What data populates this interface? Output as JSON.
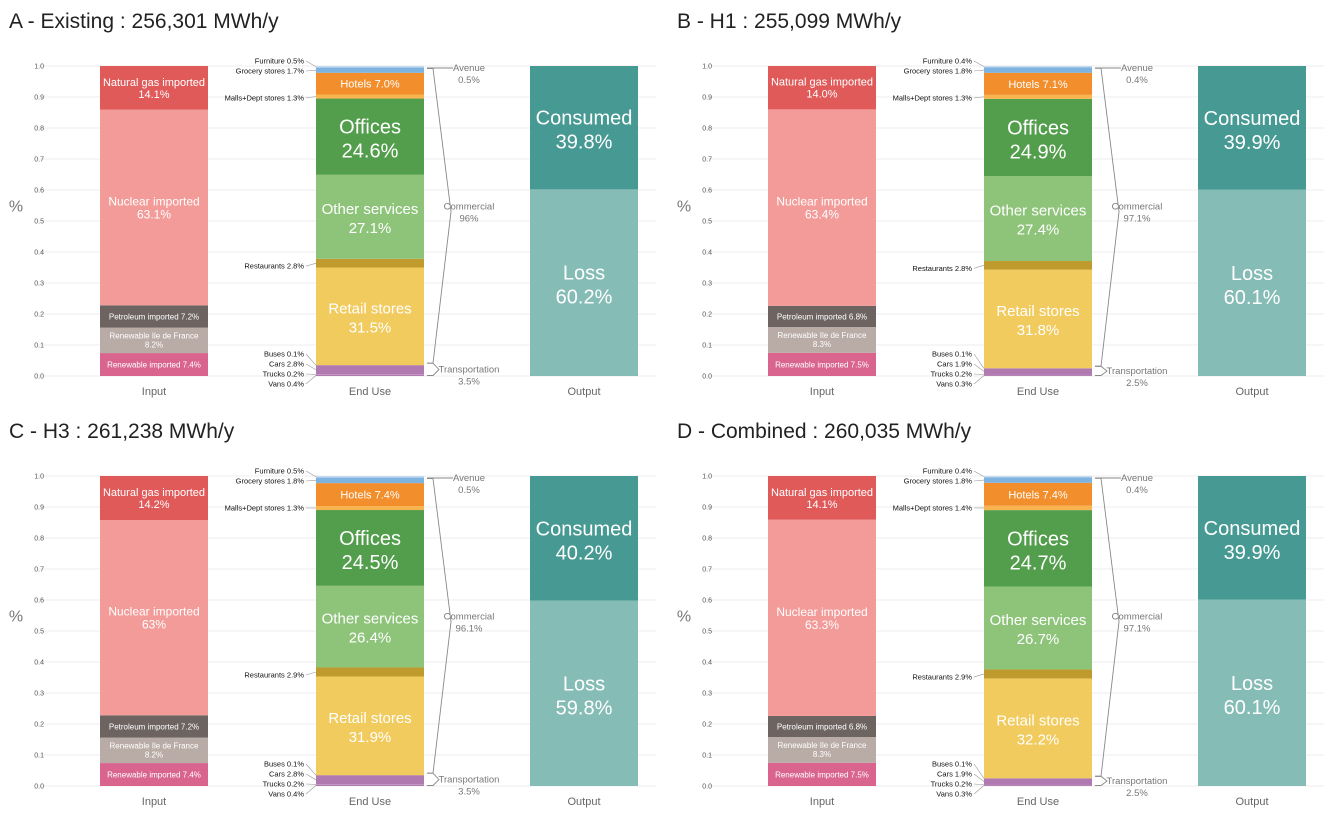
{
  "colors": {
    "natural_gas": "#e05a5a",
    "nuclear": "#f29b98",
    "petroleum": "#6d6462",
    "renewable_idf": "#b9aca6",
    "renewable_imported": "#d9658f",
    "vans": "#b07ab0",
    "trucks": "#b07ab0",
    "cars": "#b07ab0",
    "buses": "#b07ab0",
    "retail": "#f1cb5e",
    "restaurants": "#bf9a2c",
    "other_services": "#8ec47a",
    "offices": "#539e4c",
    "malls": "#f8b44f",
    "hotels": "#f28e2b",
    "grocery": "#7fb3df",
    "furniture": "#c3daf0",
    "loss": "#86bcb6",
    "consumed": "#479a93"
  },
  "chart_data": [
    {
      "type": "bar",
      "title": "A - Existing : 256,301 MWh/y",
      "ylabel": "%",
      "ylim": [
        0,
        1
      ],
      "yticks": [
        "0.0",
        "0.1",
        "0.2",
        "0.3",
        "0.4",
        "0.5",
        "0.6",
        "0.7",
        "0.8",
        "0.9",
        "1.0"
      ],
      "categories": [
        "Input",
        "End Use",
        "Output"
      ],
      "input": [
        {
          "key": "renewable_imported",
          "value": 7.4,
          "label": "Renewable imported 7.4%"
        },
        {
          "key": "renewable_idf",
          "value": 8.2,
          "label": "Renewable Ile de France",
          "label2": "8.2%"
        },
        {
          "key": "petroleum",
          "value": 7.2,
          "label": "Petroleum imported 7.2%"
        },
        {
          "key": "nuclear",
          "value": 63.1,
          "label": "Nuclear imported",
          "label2": "63.1%"
        },
        {
          "key": "natural_gas",
          "value": 14.1,
          "label": "Natural gas imported",
          "label2": "14.1%"
        }
      ],
      "end_use": [
        {
          "key": "vans",
          "value": 0.4,
          "side_label": "Vans 0.4%"
        },
        {
          "key": "trucks",
          "value": 0.2,
          "side_label": "Trucks 0.2%"
        },
        {
          "key": "cars",
          "value": 2.8,
          "side_label": "Cars 2.8%"
        },
        {
          "key": "buses",
          "value": 0.1,
          "side_label": "Buses 0.1%"
        },
        {
          "key": "retail",
          "value": 31.5,
          "label": "Retail stores",
          "label2": "31.5%"
        },
        {
          "key": "restaurants",
          "value": 2.8,
          "side_label": "Restaurants 2.8%"
        },
        {
          "key": "other_services",
          "value": 27.1,
          "label": "Other services",
          "label2": "27.1%"
        },
        {
          "key": "offices",
          "value": 24.6,
          "label": "Offices",
          "label2": "24.6%"
        },
        {
          "key": "malls",
          "value": 1.3,
          "side_label": "Malls+Dept stores 1.3%"
        },
        {
          "key": "hotels",
          "value": 7.0,
          "label": "Hotels 7.0%"
        },
        {
          "key": "grocery",
          "value": 1.7,
          "side_label": "Grocery stores 1.7%"
        },
        {
          "key": "furniture",
          "value": 0.5,
          "side_label": "Furniture 0.5%"
        }
      ],
      "groups": [
        {
          "label": "Transportation",
          "value_label": "3.5%"
        },
        {
          "label": "Commercial",
          "value_label": "96%"
        },
        {
          "label": "Avenue",
          "value_label": "0.5%"
        }
      ],
      "output": [
        {
          "key": "loss",
          "value": 60.2,
          "label": "Loss",
          "label2": "60.2%"
        },
        {
          "key": "consumed",
          "value": 39.8,
          "label": "Consumed",
          "label2": "39.8%"
        }
      ]
    },
    {
      "type": "bar",
      "title": "B - H1 : 255,099 MWh/y",
      "ylabel": "%",
      "ylim": [
        0,
        1
      ],
      "yticks": [
        "0.0",
        "0.1",
        "0.2",
        "0.3",
        "0.4",
        "0.5",
        "0.6",
        "0.7",
        "0.8",
        "0.9",
        "1.0"
      ],
      "categories": [
        "Input",
        "End Use",
        "Output"
      ],
      "input": [
        {
          "key": "renewable_imported",
          "value": 7.5,
          "label": "Renewable imported 7.5%"
        },
        {
          "key": "renewable_idf",
          "value": 8.3,
          "label": "Renewable Ile de France",
          "label2": "8.3%"
        },
        {
          "key": "petroleum",
          "value": 6.8,
          "label": "Petroleum imported 6.8%"
        },
        {
          "key": "nuclear",
          "value": 63.4,
          "label": "Nuclear imported",
          "label2": "63.4%"
        },
        {
          "key": "natural_gas",
          "value": 14.0,
          "label": "Natural gas imported",
          "label2": "14.0%"
        }
      ],
      "end_use": [
        {
          "key": "vans",
          "value": 0.3,
          "side_label": "Vans 0.3%"
        },
        {
          "key": "trucks",
          "value": 0.2,
          "side_label": "Trucks 0.2%"
        },
        {
          "key": "cars",
          "value": 1.9,
          "side_label": "Cars 1.9%"
        },
        {
          "key": "buses",
          "value": 0.1,
          "side_label": "Buses 0.1%"
        },
        {
          "key": "retail",
          "value": 31.8,
          "label": "Retail stores",
          "label2": "31.8%"
        },
        {
          "key": "restaurants",
          "value": 2.8,
          "side_label": "Restaurants 2.8%"
        },
        {
          "key": "other_services",
          "value": 27.4,
          "label": "Other services",
          "label2": "27.4%"
        },
        {
          "key": "offices",
          "value": 24.9,
          "label": "Offices",
          "label2": "24.9%"
        },
        {
          "key": "malls",
          "value": 1.3,
          "side_label": "Malls+Dept stores 1.3%"
        },
        {
          "key": "hotels",
          "value": 7.1,
          "label": "Hotels 7.1%"
        },
        {
          "key": "grocery",
          "value": 1.8,
          "side_label": "Grocery stores 1.8%"
        },
        {
          "key": "furniture",
          "value": 0.4,
          "side_label": "Furniture 0.4%"
        }
      ],
      "groups": [
        {
          "label": "Transportation",
          "value_label": "2.5%"
        },
        {
          "label": "Commercial",
          "value_label": "97.1%"
        },
        {
          "label": "Avenue",
          "value_label": "0.4%"
        }
      ],
      "output": [
        {
          "key": "loss",
          "value": 60.1,
          "label": "Loss",
          "label2": "60.1%"
        },
        {
          "key": "consumed",
          "value": 39.9,
          "label": "Consumed",
          "label2": "39.9%"
        }
      ]
    },
    {
      "type": "bar",
      "title": "C - H3 : 261,238 MWh/y",
      "ylabel": "%",
      "ylim": [
        0,
        1
      ],
      "yticks": [
        "0.0",
        "0.1",
        "0.2",
        "0.3",
        "0.4",
        "0.5",
        "0.6",
        "0.7",
        "0.8",
        "0.9",
        "1.0"
      ],
      "categories": [
        "Input",
        "End Use",
        "Output"
      ],
      "input": [
        {
          "key": "renewable_imported",
          "value": 7.4,
          "label": "Renewable imported 7.4%"
        },
        {
          "key": "renewable_idf",
          "value": 8.2,
          "label": "Renewable Ile de France",
          "label2": "8.2%"
        },
        {
          "key": "petroleum",
          "value": 7.2,
          "label": "Petroleum imported 7.2%"
        },
        {
          "key": "nuclear",
          "value": 63.0,
          "label": "Nuclear imported",
          "label2": "63%"
        },
        {
          "key": "natural_gas",
          "value": 14.2,
          "label": "Natural gas imported",
          "label2": "14.2%"
        }
      ],
      "end_use": [
        {
          "key": "vans",
          "value": 0.4,
          "side_label": "Vans 0.4%"
        },
        {
          "key": "trucks",
          "value": 0.2,
          "side_label": "Trucks 0.2%"
        },
        {
          "key": "cars",
          "value": 2.8,
          "side_label": "Cars 2.8%"
        },
        {
          "key": "buses",
          "value": 0.1,
          "side_label": "Buses 0.1%"
        },
        {
          "key": "retail",
          "value": 31.9,
          "label": "Retail stores",
          "label2": "31.9%"
        },
        {
          "key": "restaurants",
          "value": 2.9,
          "side_label": "Restaurants 2.9%"
        },
        {
          "key": "other_services",
          "value": 26.4,
          "label": "Other services",
          "label2": "26.4%"
        },
        {
          "key": "offices",
          "value": 24.5,
          "label": "Offices",
          "label2": "24.5%"
        },
        {
          "key": "malls",
          "value": 1.3,
          "side_label": "Malls+Dept stores 1.3%"
        },
        {
          "key": "hotels",
          "value": 7.4,
          "label": "Hotels 7.4%"
        },
        {
          "key": "grocery",
          "value": 1.8,
          "side_label": "Grocery stores 1.8%"
        },
        {
          "key": "furniture",
          "value": 0.5,
          "side_label": "Furniture 0.5%"
        }
      ],
      "groups": [
        {
          "label": "Transportation",
          "value_label": "3.5%"
        },
        {
          "label": "Commercial",
          "value_label": "96.1%"
        },
        {
          "label": "Avenue",
          "value_label": "0.5%"
        }
      ],
      "output": [
        {
          "key": "loss",
          "value": 59.8,
          "label": "Loss",
          "label2": "59.8%"
        },
        {
          "key": "consumed",
          "value": 40.2,
          "label": "Consumed",
          "label2": "40.2%"
        }
      ]
    },
    {
      "type": "bar",
      "title": "D - Combined : 260,035 MWh/y",
      "ylabel": "%",
      "ylim": [
        0,
        1
      ],
      "yticks": [
        "0.0",
        "0.1",
        "0.2",
        "0.3",
        "0.4",
        "0.5",
        "0.6",
        "0.7",
        "0.8",
        "0.9",
        "1.0"
      ],
      "categories": [
        "Input",
        "End Use",
        "Output"
      ],
      "input": [
        {
          "key": "renewable_imported",
          "value": 7.5,
          "label": "Renewable imported 7.5%"
        },
        {
          "key": "renewable_idf",
          "value": 8.3,
          "label": "Renewable Ile de France",
          "label2": "8.3%"
        },
        {
          "key": "petroleum",
          "value": 6.8,
          "label": "Petroleum imported 6.8%"
        },
        {
          "key": "nuclear",
          "value": 63.3,
          "label": "Nuclear imported",
          "label2": "63.3%"
        },
        {
          "key": "natural_gas",
          "value": 14.1,
          "label": "Natural gas imported",
          "label2": "14.1%"
        }
      ],
      "end_use": [
        {
          "key": "vans",
          "value": 0.3,
          "side_label": "Vans 0.3%"
        },
        {
          "key": "trucks",
          "value": 0.2,
          "side_label": "Trucks 0.2%"
        },
        {
          "key": "cars",
          "value": 1.9,
          "side_label": "Cars 1.9%"
        },
        {
          "key": "buses",
          "value": 0.1,
          "side_label": "Buses 0.1%"
        },
        {
          "key": "retail",
          "value": 32.2,
          "label": "Retail stores",
          "label2": "32.2%"
        },
        {
          "key": "restaurants",
          "value": 2.9,
          "side_label": "Restaurants 2.9%"
        },
        {
          "key": "other_services",
          "value": 26.7,
          "label": "Other services",
          "label2": "26.7%"
        },
        {
          "key": "offices",
          "value": 24.7,
          "label": "Offices",
          "label2": "24.7%"
        },
        {
          "key": "malls",
          "value": 1.4,
          "side_label": "Malls+Dept stores 1.4%"
        },
        {
          "key": "hotels",
          "value": 7.4,
          "label": "Hotels 7.4%"
        },
        {
          "key": "grocery",
          "value": 1.8,
          "side_label": "Grocery stores 1.8%"
        },
        {
          "key": "furniture",
          "value": 0.4,
          "side_label": "Furniture 0.4%"
        }
      ],
      "groups": [
        {
          "label": "Transportation",
          "value_label": "2.5%"
        },
        {
          "label": "Commercial",
          "value_label": "97.1%"
        },
        {
          "label": "Avenue",
          "value_label": "0.4%"
        }
      ],
      "output": [
        {
          "key": "loss",
          "value": 60.1,
          "label": "Loss",
          "label2": "60.1%"
        },
        {
          "key": "consumed",
          "value": 39.9,
          "label": "Consumed",
          "label2": "39.9%"
        }
      ]
    }
  ]
}
